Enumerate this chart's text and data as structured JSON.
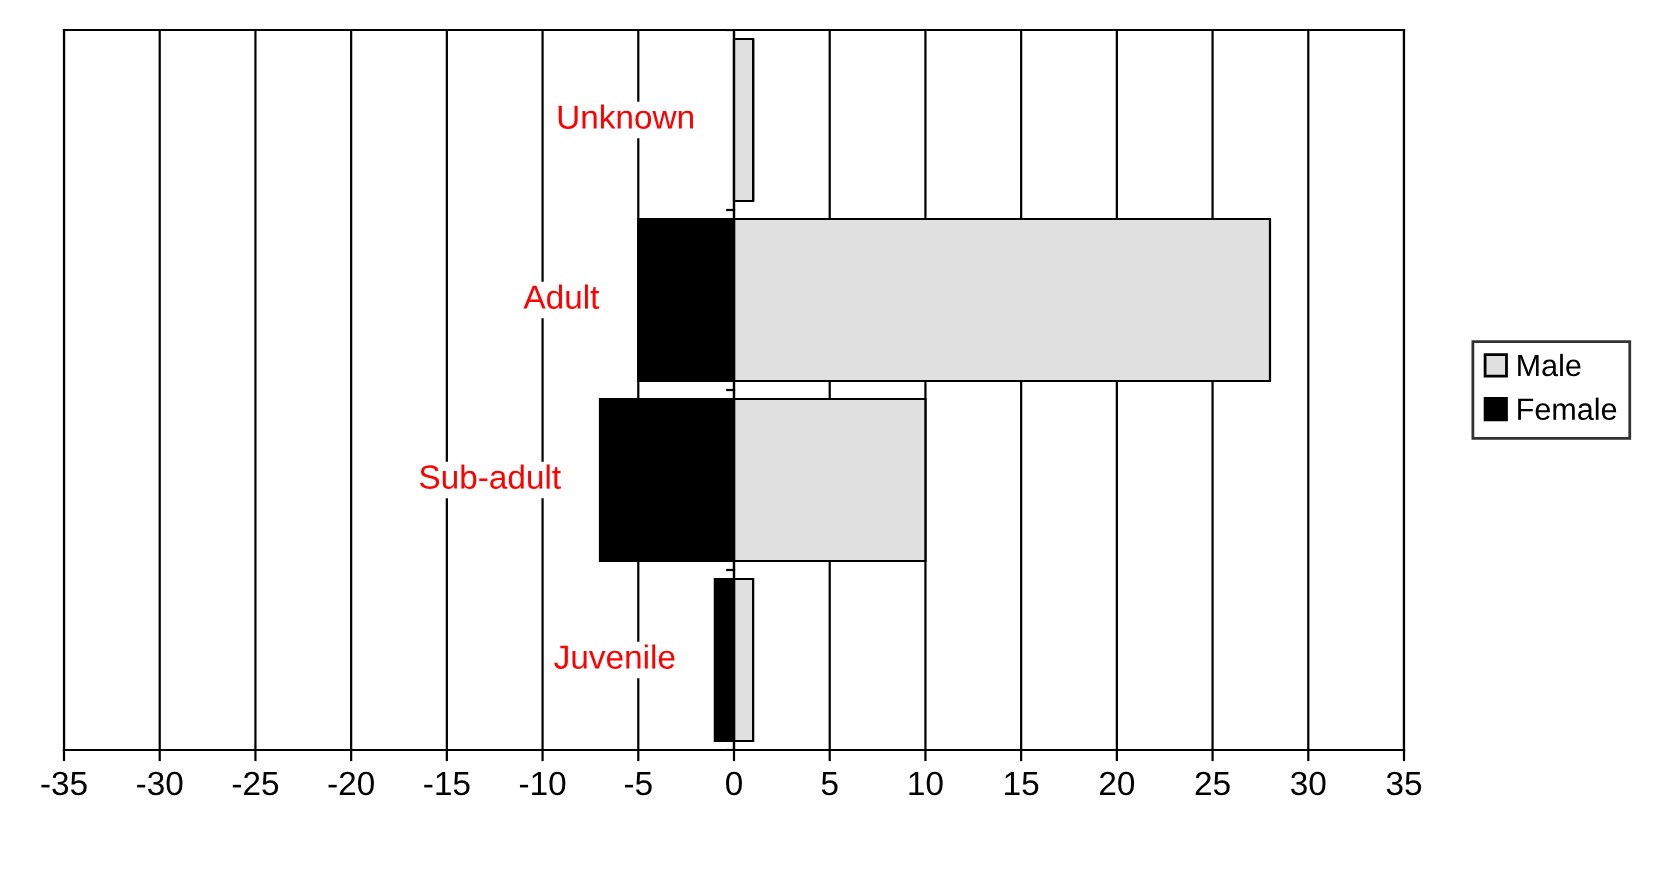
{
  "chart_data": {
    "type": "bar",
    "orientation": "horizontal",
    "stacked": true,
    "categories": [
      "Unknown",
      "Adult",
      "Sub-adult",
      "Juvenile"
    ],
    "series": [
      {
        "name": "Male",
        "color": "#e0e0e0",
        "values": [
          1,
          28,
          10,
          1
        ]
      },
      {
        "name": "Female",
        "color": "#000000",
        "values": [
          0,
          -5,
          -7,
          -1
        ]
      }
    ],
    "xlim": [
      -35,
      35
    ],
    "xticks": [
      -35,
      -30,
      -25,
      -20,
      -15,
      -10,
      -5,
      0,
      5,
      10,
      15,
      20,
      25,
      30,
      35
    ],
    "grid": "x",
    "legend": "right"
  }
}
